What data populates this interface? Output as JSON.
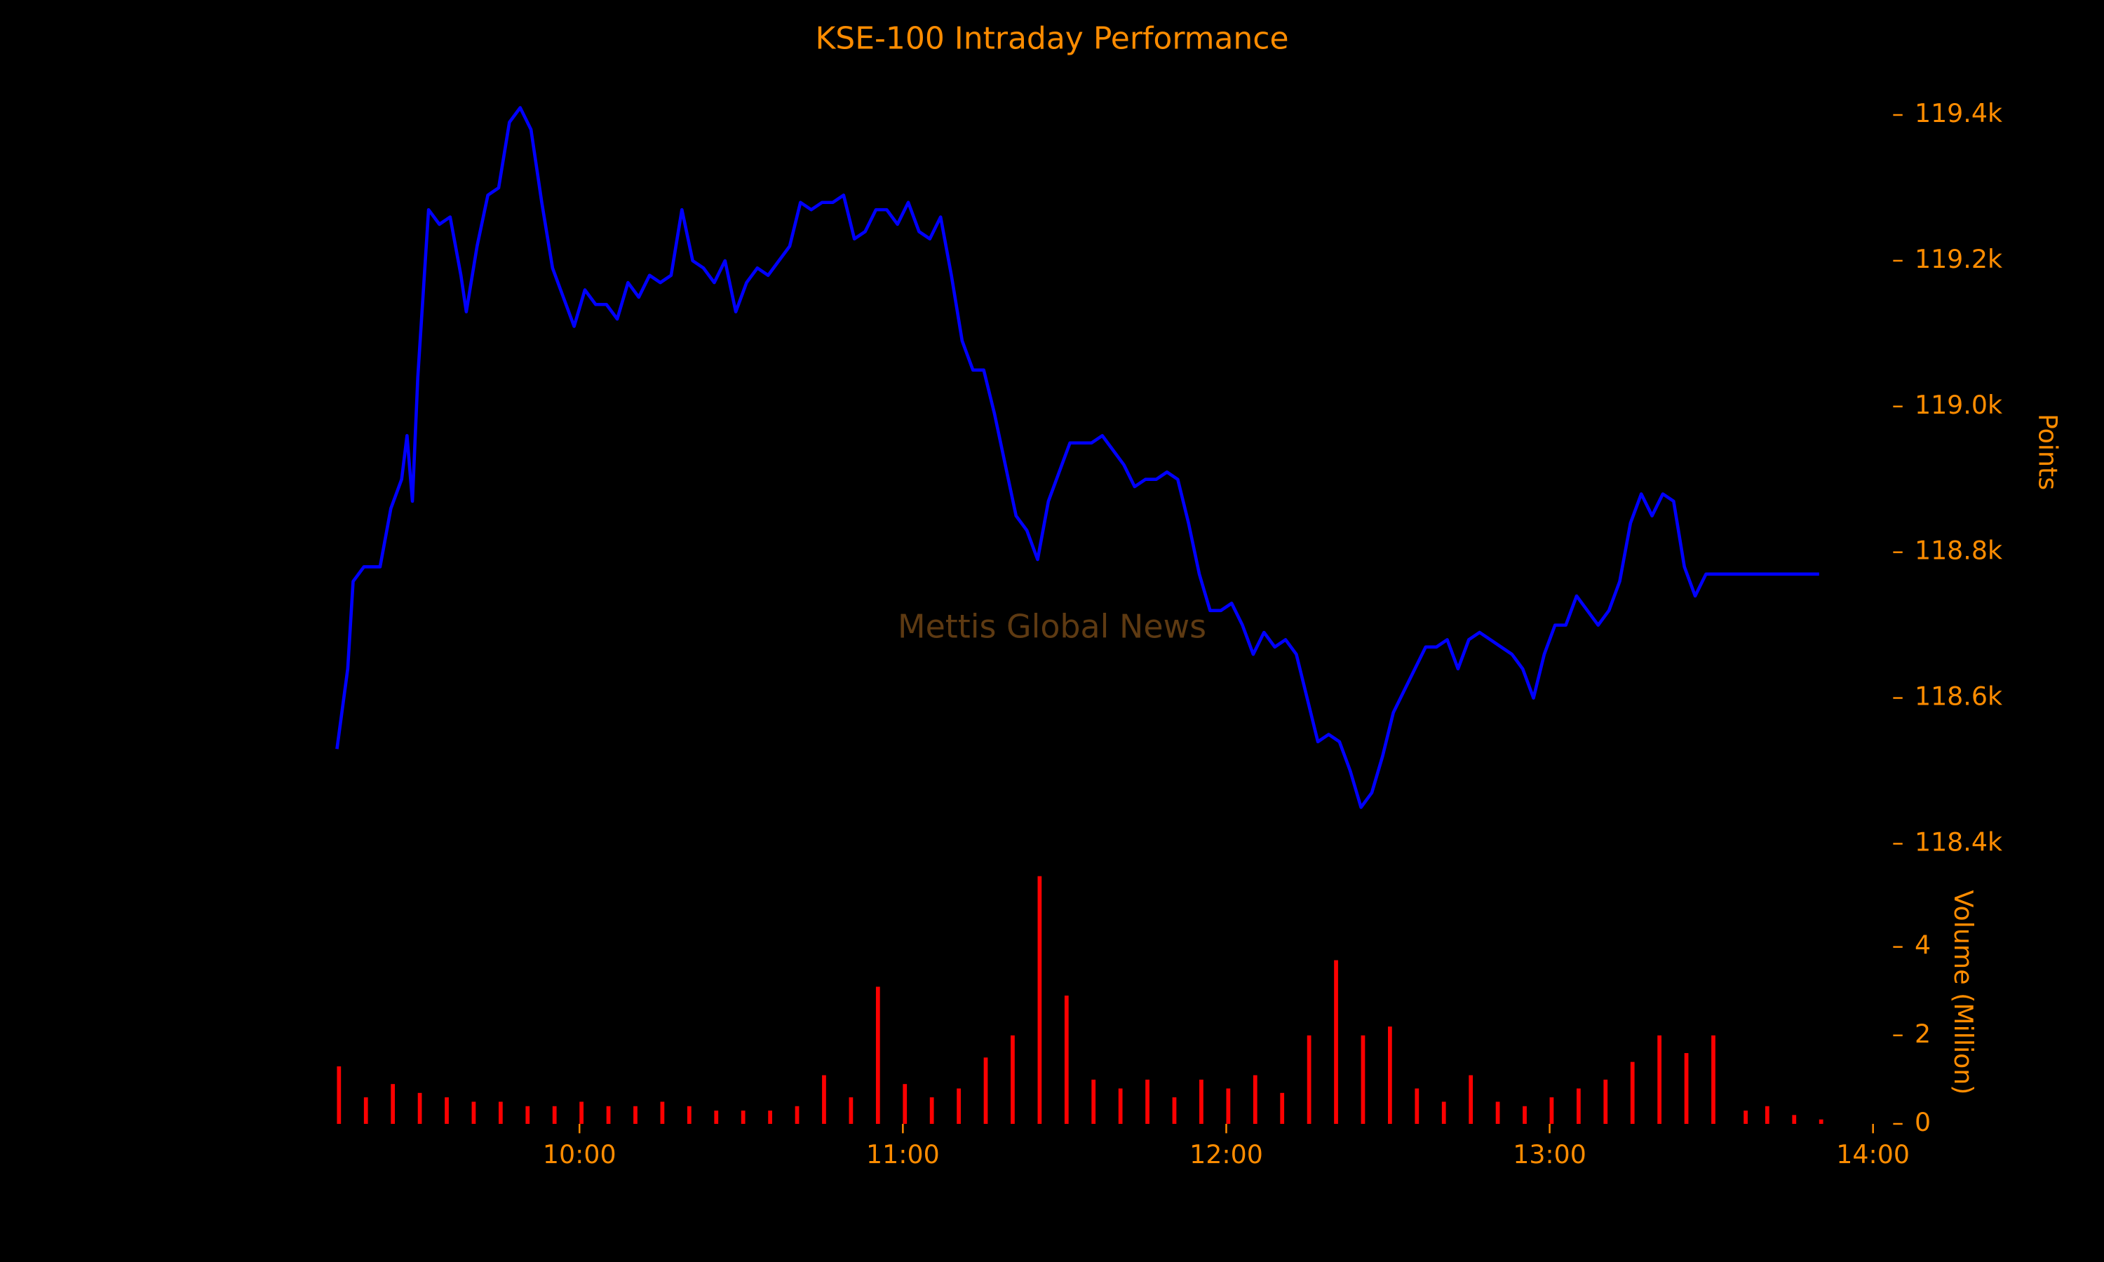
{
  "chart_data": [
    {
      "type": "line",
      "title": "KSE-100 Intraday Performance",
      "watermark": "Mettis Global News",
      "ylabel": "Points",
      "color": "#0000ff",
      "xlim": [
        "09:15",
        "14:00"
      ],
      "ylim": [
        118380,
        119440
      ],
      "yticks": [
        {
          "value": 118400,
          "label": "118.4k"
        },
        {
          "value": 118600,
          "label": "118.6k"
        },
        {
          "value": 118800,
          "label": "118.8k"
        },
        {
          "value": 119000,
          "label": "119.0k"
        },
        {
          "value": 119200,
          "label": "119.2k"
        },
        {
          "value": 119400,
          "label": "119.4k"
        }
      ],
      "x": [
        "09:15",
        "09:17",
        "09:18",
        "09:20",
        "09:23",
        "09:25",
        "09:27",
        "09:28",
        "09:29",
        "09:30",
        "09:32",
        "09:34",
        "09:36",
        "09:38",
        "09:39",
        "09:41",
        "09:43",
        "09:45",
        "09:47",
        "09:49",
        "09:51",
        "09:53",
        "09:55",
        "09:57",
        "09:59",
        "10:01",
        "10:03",
        "10:05",
        "10:07",
        "10:09",
        "10:11",
        "10:13",
        "10:15",
        "10:17",
        "10:19",
        "10:21",
        "10:23",
        "10:25",
        "10:27",
        "10:29",
        "10:31",
        "10:33",
        "10:35",
        "10:37",
        "10:39",
        "10:41",
        "10:43",
        "10:45",
        "10:47",
        "10:49",
        "10:51",
        "10:53",
        "10:55",
        "10:57",
        "10:59",
        "11:01",
        "11:03",
        "11:05",
        "11:07",
        "11:09",
        "11:11",
        "11:13",
        "11:15",
        "11:17",
        "11:19",
        "11:21",
        "11:23",
        "11:25",
        "11:27",
        "11:29",
        "11:31",
        "11:33",
        "11:35",
        "11:37",
        "11:39",
        "11:41",
        "11:43",
        "11:45",
        "11:47",
        "11:49",
        "11:51",
        "11:53",
        "11:55",
        "11:57",
        "11:59",
        "12:01",
        "12:03",
        "12:05",
        "12:07",
        "12:09",
        "12:11",
        "12:13",
        "12:15",
        "12:17",
        "12:19",
        "12:21",
        "12:23",
        "12:25",
        "12:27",
        "12:29",
        "12:31",
        "12:33",
        "12:35",
        "12:37",
        "12:39",
        "12:41",
        "12:43",
        "12:45",
        "12:47",
        "12:49",
        "12:51",
        "12:53",
        "12:55",
        "12:57",
        "12:59",
        "13:01",
        "13:03",
        "13:05",
        "13:07",
        "13:09",
        "13:11",
        "13:13",
        "13:15",
        "13:17",
        "13:19",
        "13:21",
        "13:23",
        "13:25",
        "13:27",
        "13:29",
        "13:30",
        "13:50"
      ],
      "values": [
        118530,
        118640,
        118760,
        118780,
        118780,
        118860,
        118900,
        118960,
        118870,
        119040,
        119270,
        119250,
        119260,
        119180,
        119130,
        119220,
        119290,
        119300,
        119390,
        119410,
        119380,
        119280,
        119190,
        119150,
        119110,
        119160,
        119140,
        119140,
        119120,
        119170,
        119150,
        119180,
        119170,
        119180,
        119270,
        119200,
        119190,
        119170,
        119200,
        119130,
        119170,
        119190,
        119180,
        119200,
        119220,
        119280,
        119270,
        119280,
        119280,
        119290,
        119230,
        119240,
        119270,
        119270,
        119250,
        119280,
        119240,
        119230,
        119260,
        119180,
        119090,
        119050,
        119050,
        118990,
        118920,
        118850,
        118830,
        118790,
        118870,
        118910,
        118950,
        118950,
        118950,
        118960,
        118940,
        118920,
        118890,
        118900,
        118900,
        118910,
        118900,
        118840,
        118770,
        118720,
        118720,
        118730,
        118700,
        118660,
        118690,
        118670,
        118680,
        118660,
        118600,
        118540,
        118550,
        118540,
        118500,
        118450,
        118470,
        118520,
        118580,
        118610,
        118640,
        118670,
        118670,
        118680,
        118640,
        118680,
        118690,
        118680,
        118670,
        118660,
        118640,
        118600,
        118660,
        118700,
        118700,
        118740,
        118720,
        118700,
        118720,
        118760,
        118840,
        118880,
        118850,
        118880,
        118870,
        118780,
        118740,
        118770,
        118770,
        118770
      ]
    },
    {
      "type": "bar",
      "ylabel": "Volume (Million)",
      "color": "#ff0000",
      "xlim": [
        "09:15",
        "14:00"
      ],
      "xticks": [
        "10:00",
        "11:00",
        "12:00",
        "13:00",
        "14:00"
      ],
      "ylim": [
        0,
        5.7
      ],
      "yticks": [
        0,
        2,
        4
      ],
      "x": [
        "09:15",
        "09:20",
        "09:25",
        "09:30",
        "09:35",
        "09:40",
        "09:45",
        "09:50",
        "09:55",
        "10:00",
        "10:05",
        "10:10",
        "10:15",
        "10:20",
        "10:25",
        "10:30",
        "10:35",
        "10:40",
        "10:45",
        "10:50",
        "10:55",
        "11:00",
        "11:05",
        "11:10",
        "11:15",
        "11:20",
        "11:25",
        "11:30",
        "11:35",
        "11:40",
        "11:45",
        "11:50",
        "11:55",
        "12:00",
        "12:05",
        "12:10",
        "12:15",
        "12:20",
        "12:25",
        "12:30",
        "12:35",
        "12:40",
        "12:45",
        "12:50",
        "12:55",
        "13:00",
        "13:05",
        "13:10",
        "13:15",
        "13:20",
        "13:25",
        "13:30",
        "13:36",
        "13:40",
        "13:45",
        "13:50"
      ],
      "values": [
        1.3,
        0.6,
        0.9,
        0.7,
        0.6,
        0.5,
        0.5,
        0.4,
        0.4,
        0.5,
        0.4,
        0.4,
        0.5,
        0.4,
        0.3,
        0.3,
        0.3,
        0.4,
        1.1,
        0.6,
        3.1,
        0.9,
        0.6,
        0.8,
        1.5,
        2.0,
        5.6,
        2.9,
        1.0,
        0.8,
        1.0,
        0.6,
        1.0,
        0.8,
        1.1,
        0.7,
        2.0,
        3.7,
        2.0,
        2.2,
        0.8,
        0.5,
        1.1,
        0.5,
        0.4,
        0.6,
        0.8,
        1.0,
        1.4,
        2.0,
        1.6,
        2.0,
        0.3,
        0.4,
        0.2,
        0.1
      ]
    }
  ]
}
